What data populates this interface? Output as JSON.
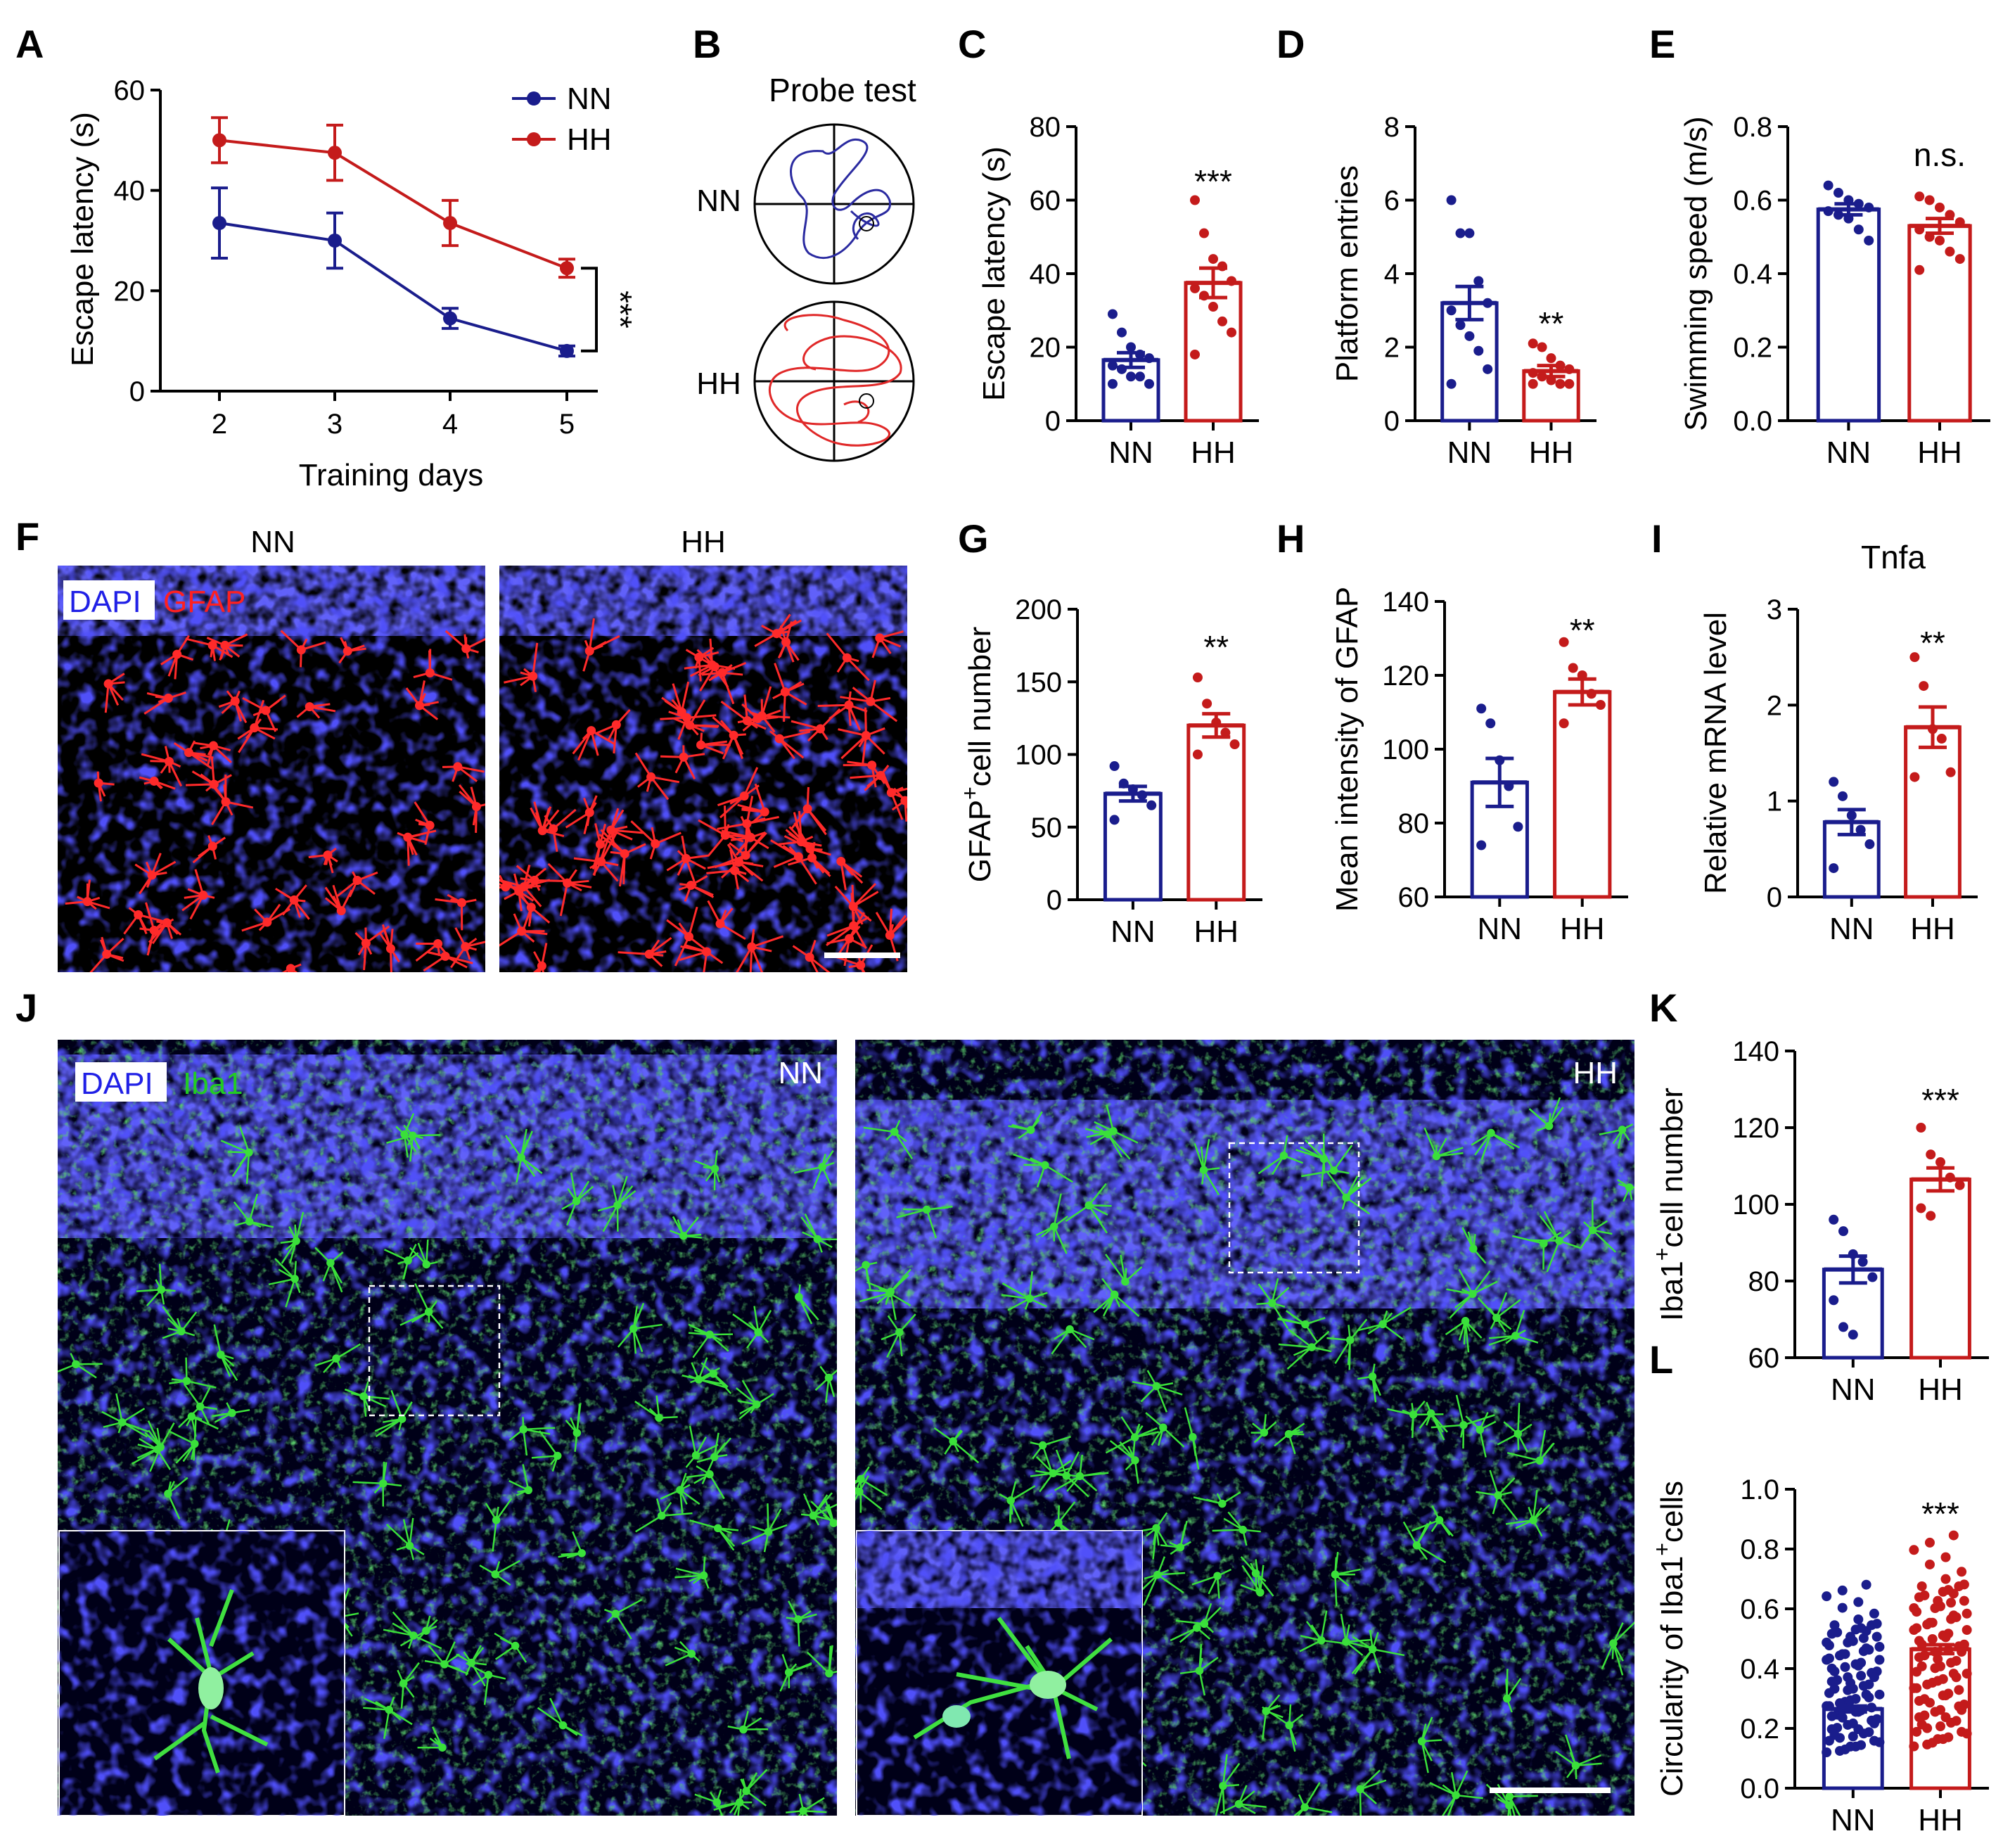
{
  "colors": {
    "NN": "#1a1d8c",
    "HH": "#c41b1b",
    "dapi": "#2020e6",
    "gfap": "#ff2020",
    "iba1": "#22cc22"
  },
  "labels": {
    "F_NN": "NN",
    "F_HH": "HH",
    "F_legend_dapi": "DAPI",
    "F_legend_gfap": "GFAP",
    "J_legend_dapi": "DAPI",
    "J_legend_iba1": "Iba1",
    "J_NN": "NN",
    "J_HH": "HH",
    "B_title": "Probe test",
    "B_NN": "NN",
    "B_HH": "HH"
  },
  "chart_data": [
    {
      "panel": "A",
      "type": "line",
      "x": [
        2,
        3,
        4,
        5
      ],
      "series": [
        {
          "name": "NN",
          "values": [
            33.5,
            30,
            14.5,
            8
          ],
          "err": [
            7,
            5.5,
            2,
            1
          ]
        },
        {
          "name": "HH",
          "values": [
            50,
            47.5,
            33.5,
            24.5
          ],
          "err": [
            4.5,
            5.5,
            4.5,
            1.8
          ]
        }
      ],
      "xlabel": "Training days",
      "ylabel": "Escape latency (s)",
      "ylim": [
        0,
        60
      ],
      "yticks": [
        "0",
        "20",
        "40",
        "60"
      ],
      "xticks": [
        "2",
        "3",
        "4",
        "5"
      ],
      "sig": "***",
      "legend": [
        "NN",
        "HH"
      ]
    },
    {
      "panel": "C",
      "type": "bar",
      "categories": [
        "NN",
        "HH"
      ],
      "values": [
        16.5,
        37.5
      ],
      "err": [
        2,
        4
      ],
      "points": [
        [
          29,
          24,
          20,
          18,
          17,
          15,
          14,
          12,
          12,
          10,
          10
        ],
        [
          60,
          51,
          44,
          42,
          38,
          36,
          34,
          31,
          27,
          24,
          18
        ]
      ],
      "ylabel": "Escape latency (s)",
      "ylim": [
        0,
        80
      ],
      "yticks": [
        "0",
        "20",
        "40",
        "60",
        "80"
      ],
      "sig": "***"
    },
    {
      "panel": "D",
      "type": "bar",
      "categories": [
        "NN",
        "HH"
      ],
      "values": [
        3.2,
        1.35
      ],
      "err": [
        0.45,
        0.15
      ],
      "points": [
        [
          6,
          5.1,
          5.1,
          3.8,
          3.2,
          3,
          2.6,
          2.3,
          1.9,
          1.4,
          1
        ],
        [
          2.1,
          2,
          1.7,
          1.5,
          1.4,
          1.3,
          1.2,
          1.1,
          1,
          1,
          1
        ]
      ],
      "ylabel": "Platform entries",
      "ylim": [
        0,
        8
      ],
      "yticks": [
        "0",
        "2",
        "4",
        "6",
        "8"
      ],
      "sig": "**"
    },
    {
      "panel": "E",
      "type": "bar",
      "categories": [
        "NN",
        "HH"
      ],
      "values": [
        0.575,
        0.53
      ],
      "err": [
        0.015,
        0.02
      ],
      "points": [
        [
          0.64,
          0.62,
          0.6,
          0.59,
          0.58,
          0.57,
          0.56,
          0.55,
          0.52,
          0.49
        ],
        [
          0.61,
          0.6,
          0.58,
          0.56,
          0.54,
          0.52,
          0.5,
          0.49,
          0.46,
          0.44,
          0.41
        ]
      ],
      "ylabel": "Swimming speed (m/s)",
      "ylim": [
        0,
        0.8
      ],
      "yticks": [
        "0.0",
        "0.2",
        "0.4",
        "0.6",
        "0.8"
      ],
      "sig": "n.s."
    },
    {
      "panel": "G",
      "type": "bar",
      "categories": [
        "NN",
        "HH"
      ],
      "values": [
        73,
        120
      ],
      "err": [
        5,
        8
      ],
      "points": [
        [
          92,
          80,
          76,
          72,
          65,
          55
        ],
        [
          153,
          135,
          122,
          115,
          107,
          100
        ]
      ],
      "ylabel": "GFAP+cell number",
      "ylim": [
        0,
        200
      ],
      "yticks": [
        "0",
        "50",
        "100",
        "150",
        "200"
      ],
      "sig": "**"
    },
    {
      "panel": "H",
      "type": "bar",
      "categories": [
        "NN",
        "HH"
      ],
      "values": [
        91,
        115.5
      ],
      "err": [
        6.5,
        3.5
      ],
      "points": [
        [
          111,
          107,
          97,
          90,
          79,
          74
        ],
        [
          129,
          122,
          120,
          115,
          112,
          107
        ]
      ],
      "ylabel": "Mean intensity of GFAP",
      "ylim": [
        60,
        140
      ],
      "yticks": [
        "60",
        "80",
        "100",
        "120",
        "140"
      ],
      "sig": "**"
    },
    {
      "panel": "I",
      "type": "bar",
      "categories": [
        "NN",
        "HH"
      ],
      "values": [
        0.78,
        1.77
      ],
      "err": [
        0.13,
        0.21
      ],
      "points": [
        [
          1.2,
          1.05,
          0.85,
          0.7,
          0.55,
          0.3
        ],
        [
          2.5,
          2.2,
          1.75,
          1.65,
          1.3,
          1.25
        ]
      ],
      "title": "Tnfa",
      "ylabel": "Relative mRNA level",
      "ylim": [
        0,
        3
      ],
      "yticks": [
        "0",
        "1",
        "2",
        "3"
      ],
      "sig": "**"
    },
    {
      "panel": "K",
      "type": "bar",
      "categories": [
        "NN",
        "HH"
      ],
      "values": [
        83,
        106.5
      ],
      "err": [
        3.5,
        3
      ],
      "points": [
        [
          96,
          93,
          87,
          85,
          81,
          75,
          68,
          66
        ],
        [
          120,
          113,
          111,
          107,
          105,
          99,
          97
        ]
      ],
      "ylabel": "Iba1+cell number",
      "ylim": [
        60,
        140
      ],
      "yticks": [
        "60",
        "80",
        "100",
        "120",
        "140"
      ],
      "sig": "***"
    },
    {
      "panel": "L",
      "type": "bar",
      "categories": [
        "NN",
        "HH"
      ],
      "values": [
        0.265,
        0.465
      ],
      "err": [
        0.01,
        0.015
      ],
      "range": [
        [
          0.12,
          0.7
        ],
        [
          0.14,
          0.87
        ]
      ],
      "ylabel": "Circularity of Iba1+cells",
      "ylim": [
        0,
        1.0
      ],
      "yticks": [
        "0.0",
        "0.2",
        "0.4",
        "0.6",
        "0.8",
        "1.0"
      ],
      "sig": "***"
    }
  ],
  "panel_letters": [
    "A",
    "B",
    "C",
    "D",
    "E",
    "F",
    "G",
    "H",
    "I",
    "J",
    "K",
    "L"
  ]
}
